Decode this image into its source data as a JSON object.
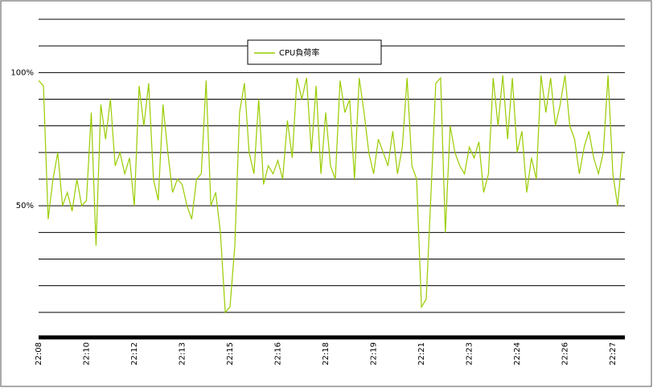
{
  "chart_data": {
    "type": "line",
    "categories": [
      "22:08",
      null,
      null,
      null,
      null,
      null,
      null,
      null,
      null,
      null,
      "22:10",
      null,
      null,
      null,
      null,
      null,
      null,
      null,
      null,
      null,
      "22:12",
      null,
      null,
      null,
      null,
      null,
      null,
      null,
      null,
      null,
      "22:13",
      null,
      null,
      null,
      null,
      null,
      null,
      null,
      null,
      null,
      "22:15",
      null,
      null,
      null,
      null,
      null,
      null,
      null,
      null,
      null,
      "22:16",
      null,
      null,
      null,
      null,
      null,
      null,
      null,
      null,
      null,
      "22:18",
      null,
      null,
      null,
      null,
      null,
      null,
      null,
      null,
      null,
      "22:19",
      null,
      null,
      null,
      null,
      null,
      null,
      null,
      null,
      null,
      "22:21",
      null,
      null,
      null,
      null,
      null,
      null,
      null,
      null,
      null,
      "22:23",
      null,
      null,
      null,
      null,
      null,
      null,
      null,
      null,
      null,
      "22:24",
      null,
      null,
      null,
      null,
      null,
      null,
      null,
      null,
      null,
      "22:26",
      null,
      null,
      null,
      null,
      null,
      null,
      null,
      null,
      null,
      "22:27",
      null,
      null
    ],
    "series": [
      {
        "name": "CPU負荷率",
        "color": "#99cc00",
        "values": [
          97,
          95,
          45,
          60,
          70,
          50,
          55,
          48,
          60,
          50,
          52,
          85,
          35,
          88,
          75,
          90,
          65,
          70,
          62,
          68,
          50,
          95,
          80,
          96,
          60,
          52,
          88,
          70,
          55,
          60,
          58,
          50,
          45,
          60,
          62,
          97,
          50,
          55,
          40,
          10,
          12,
          35,
          85,
          96,
          70,
          62,
          90,
          58,
          65,
          62,
          67,
          60,
          82,
          68,
          98,
          90,
          98,
          70,
          95,
          62,
          85,
          65,
          60,
          97,
          85,
          90,
          60,
          98,
          85,
          70,
          62,
          75,
          70,
          65,
          78,
          62,
          72,
          98,
          65,
          60,
          12,
          15,
          55,
          96,
          98,
          40,
          80,
          70,
          65,
          62,
          72,
          68,
          74,
          55,
          62,
          98,
          80,
          99,
          75,
          98,
          70,
          78,
          55,
          68,
          60,
          99,
          85,
          98,
          80,
          88,
          99,
          80,
          75,
          62,
          72,
          78,
          68,
          62,
          70,
          99,
          62,
          50,
          70
        ]
      }
    ],
    "ylim": [
      0,
      120
    ],
    "yticks": [
      {
        "value": 50,
        "label": "50%"
      },
      {
        "value": 100,
        "label": "100%"
      }
    ],
    "ygrid": [
      10,
      20,
      30,
      40,
      50,
      60,
      70,
      80,
      90,
      100,
      110,
      120
    ],
    "legend": "top"
  }
}
